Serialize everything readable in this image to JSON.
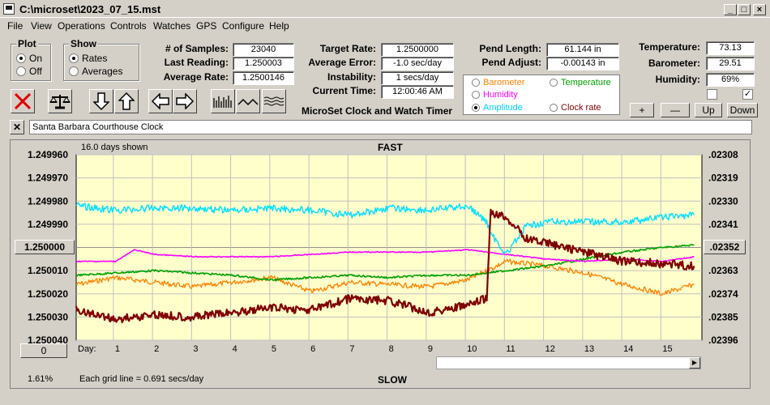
{
  "window": {
    "title": "C:\\microset\\2023_07_15.mst"
  },
  "menu": [
    "File",
    "View",
    "Operations",
    "Controls",
    "Watches",
    "GPS",
    "Configure",
    "Help"
  ],
  "plot_group": {
    "label": "Plot",
    "on": "On",
    "off": "Off",
    "selected": "On"
  },
  "show_group": {
    "label": "Show",
    "rates": "Rates",
    "averages": "Averages",
    "selected": "Rates"
  },
  "stats": {
    "samples_label": "# of Samples:",
    "samples": "23040",
    "last_label": "Last Reading:",
    "last": "1.250003",
    "avg_label": "Average Rate:",
    "avg": "1.2500146"
  },
  "target": {
    "target_label": "Target Rate:",
    "target": "1.2500000",
    "error_label": "Average Error:",
    "error": "-1.0 sec/day",
    "instab_label": "Instability:",
    "instab": "1 secs/day",
    "time_label": "Current Time:",
    "time": "12:00:46 AM",
    "app_name": "MicroSet Clock and Watch Timer"
  },
  "pend": {
    "length_label": "Pend Length:",
    "length": "61.144 in",
    "adjust_label": "Pend Adjust:",
    "adjust": "-0.00143 in"
  },
  "env": {
    "temp_label": "Temperature:",
    "temp": "73.13",
    "baro_label": "Barometer:",
    "baro": "29.51",
    "hum_label": "Humidity:",
    "hum": "69%"
  },
  "legend": {
    "barometer": "Barometer",
    "temperature": "Temperature",
    "humidity": "Humidity",
    "amplitude": "Amplitude",
    "clock_rate": "Clock rate",
    "selected": "Amplitude"
  },
  "colors": {
    "barometer": "#ff8000",
    "temperature": "#00a000",
    "humidity": "#ff00ff",
    "amplitude": "#00e0ff",
    "clock_rate": "#800000",
    "plot_bg": "#ffffcc"
  },
  "step_buttons": {
    "plus": "+",
    "minus": "—",
    "up": "Up",
    "down": "Down"
  },
  "notes_text": "Santa Barbara Courthouse Clock",
  "plot": {
    "days_shown": "16.0 days shown",
    "top_label": "FAST",
    "bottom_label": "SLOW",
    "center_button": "1.250000",
    "bottom_button": "0",
    "right_button": ".02352",
    "left_ticks": [
      "1.249960",
      "1.249970",
      "1.249980",
      "1.249990",
      "1.250000",
      "1.250010",
      "1.250020",
      "1.250030",
      "1.250040"
    ],
    "right_ticks": [
      ".02308",
      ".02319",
      ".02330",
      ".02341",
      ".02352",
      ".02363",
      ".02374",
      ".02385",
      ".02396"
    ],
    "day_label": "Day:",
    "days": [
      "1",
      "2",
      "3",
      "4",
      "5",
      "6",
      "7",
      "8",
      "9",
      "10",
      "11",
      "12",
      "13",
      "14",
      "15"
    ],
    "percent": "1.61%",
    "grid_note": "Each grid line = 0.691 secs/day"
  },
  "chart_data": {
    "type": "line",
    "xlabel": "Day:",
    "ylabel": "",
    "xlim": [
      0,
      16
    ],
    "ylim": [
      1.24996,
      1.25004
    ],
    "y2lim": [
      0.02308,
      0.02396
    ],
    "series": [
      {
        "name": "Clock rate",
        "x": [
          0,
          1,
          2,
          3,
          4,
          5,
          6,
          7,
          8,
          9,
          10,
          10.5,
          10.6,
          11,
          11.5,
          12,
          13,
          14,
          15,
          15.8
        ],
        "y": [
          1.250027,
          1.250031,
          1.250029,
          1.25003,
          1.250028,
          1.250026,
          1.250027,
          1.250022,
          1.250023,
          1.250028,
          1.250025,
          1.250022,
          1.249985,
          1.249987,
          1.249996,
          1.249998,
          1.250002,
          1.250006,
          1.250007,
          1.250008
        ]
      },
      {
        "name": "Amplitude",
        "x": [
          0,
          1,
          2,
          3,
          4,
          5,
          6,
          7,
          8,
          9,
          10,
          10.5,
          10.6,
          11,
          11.5,
          12,
          13,
          14,
          15,
          15.8
        ],
        "y": [
          1.249982,
          1.249984,
          1.249983,
          1.249983,
          1.249984,
          1.249983,
          1.249984,
          1.249986,
          1.249983,
          1.249984,
          1.249982,
          1.249989,
          1.249994,
          1.250003,
          1.249991,
          1.249989,
          1.249989,
          1.249989,
          1.249987,
          1.249986
        ]
      },
      {
        "name": "Humidity",
        "x": [
          0,
          1,
          1.5,
          2,
          3,
          4,
          5,
          6,
          7,
          8,
          9,
          10,
          11,
          12,
          13,
          14,
          15,
          15.8
        ],
        "y": [
          1.250006,
          1.250006,
          1.250001,
          1.250003,
          1.250004,
          1.250004,
          1.250004,
          1.250003,
          1.250002,
          1.250002,
          1.250002,
          1.250001,
          1.250003,
          1.250005,
          1.250006,
          1.250005,
          1.250006,
          1.250004
        ]
      },
      {
        "name": "Temperature",
        "x": [
          0,
          1,
          2,
          3,
          4,
          5,
          6,
          7,
          8,
          9,
          10,
          11,
          12,
          13,
          14,
          15,
          15.8
        ],
        "y": [
          1.250012,
          1.250011,
          1.25001,
          1.250011,
          1.250012,
          1.250014,
          1.250013,
          1.250012,
          1.250013,
          1.250012,
          1.250012,
          1.25001,
          1.250008,
          1.250005,
          1.250002,
          1.25,
          1.249999
        ]
      },
      {
        "name": "Barometer",
        "x": [
          0,
          1,
          2,
          3,
          4,
          5,
          6,
          7,
          8,
          9,
          10,
          11,
          12,
          13,
          14,
          15,
          15.8
        ],
        "y": [
          1.250016,
          1.250013,
          1.250015,
          1.250017,
          1.250015,
          1.250013,
          1.250019,
          1.250015,
          1.250016,
          1.250017,
          1.250014,
          1.250006,
          1.250008,
          1.250011,
          1.250016,
          1.25002,
          1.250016
        ]
      }
    ]
  }
}
